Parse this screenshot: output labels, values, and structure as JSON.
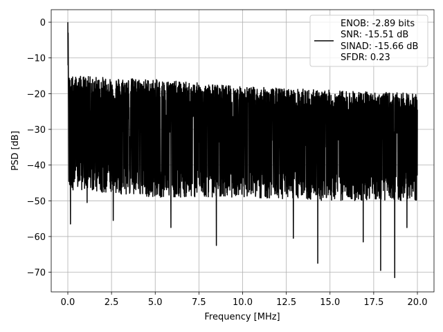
{
  "chart_data": {
    "type": "line",
    "xlabel": "Frequency [MHz]",
    "ylabel": "PSD [dB]",
    "xlim": [
      -0.95,
      20.95
    ],
    "ylim": [
      -75.5,
      3.5
    ],
    "xticks": [
      0.0,
      2.5,
      5.0,
      7.5,
      10.0,
      12.5,
      15.0,
      17.5,
      20.0
    ],
    "xtick_labels": [
      "0.0",
      "2.5",
      "5.0",
      "7.5",
      "10.0",
      "12.5",
      "15.0",
      "17.5",
      "20.0"
    ],
    "yticks": [
      0,
      -10,
      -20,
      -30,
      -40,
      -50,
      -60,
      -70
    ],
    "ytick_labels": [
      "0",
      "−10",
      "−20",
      "−30",
      "−40",
      "−50",
      "−60",
      "−70"
    ],
    "grid": true,
    "legend_position": "top-right",
    "legend": [
      "ENOB: -2.89 bits",
      "SNR: -15.51 dB",
      "SINAD: -15.66 dB",
      "SFDR: 0.23"
    ],
    "series": [
      {
        "color": "#000000",
        "x_range": [
          0,
          20
        ],
        "peak": {
          "x": 0.0,
          "y": 0.0
        },
        "noise_floor_top_approx": [
          {
            "x": 0.5,
            "y": -17
          },
          {
            "x": 5,
            "y": -18
          },
          {
            "x": 10,
            "y": -20
          },
          {
            "x": 15,
            "y": -21
          },
          {
            "x": 20,
            "y": -22
          }
        ],
        "noise_floor_bottom_approx": [
          {
            "x": 0.5,
            "y": -44
          },
          {
            "x": 5,
            "y": -46
          },
          {
            "x": 10,
            "y": -46
          },
          {
            "x": 15,
            "y": -47
          },
          {
            "x": 20,
            "y": -47
          }
        ],
        "deep_nulls": [
          {
            "x": 0.15,
            "y": -56.5
          },
          {
            "x": 1.1,
            "y": -50.5
          },
          {
            "x": 2.6,
            "y": -55.5
          },
          {
            "x": 5.9,
            "y": -57.5
          },
          {
            "x": 8.5,
            "y": -62.5
          },
          {
            "x": 12.9,
            "y": -60.5
          },
          {
            "x": 14.3,
            "y": -67.5
          },
          {
            "x": 16.9,
            "y": -61.5
          },
          {
            "x": 17.9,
            "y": -69.5
          },
          {
            "x": 18.7,
            "y": -71.5
          },
          {
            "x": 19.4,
            "y": -57.5
          }
        ]
      }
    ]
  }
}
